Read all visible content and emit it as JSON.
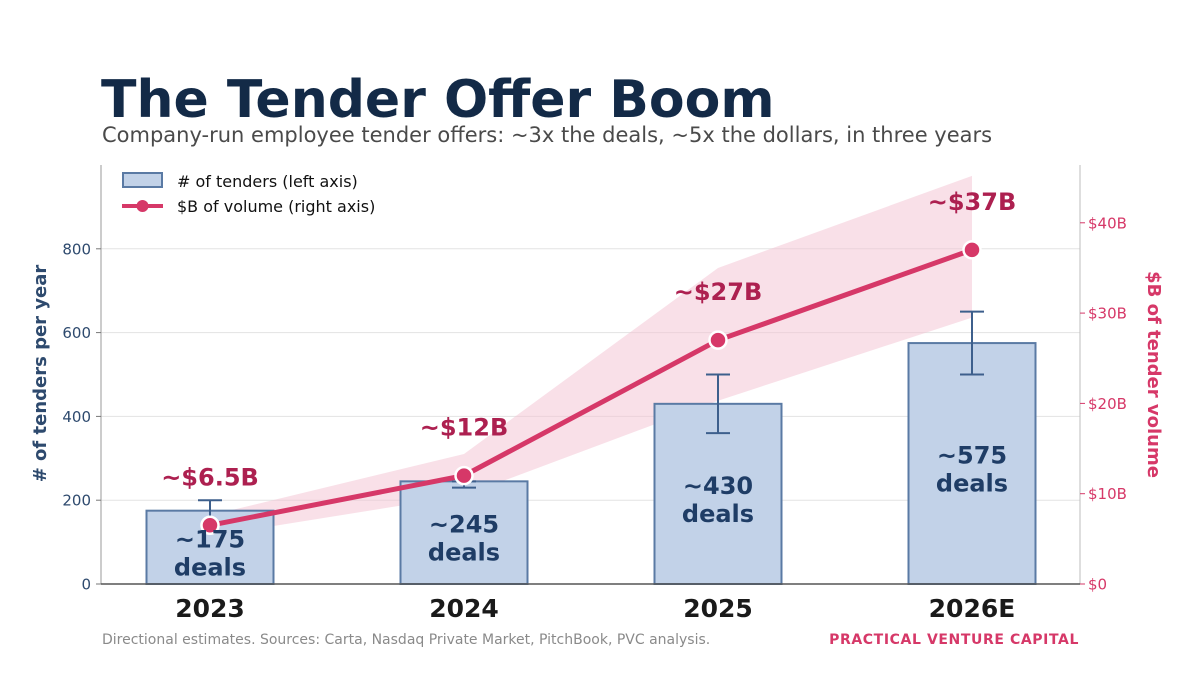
{
  "header": {
    "title": "The Tender Offer Boom",
    "subtitle": "Company-run employee tender offers: ~3x the deals, ~5x the dollars, in three years"
  },
  "footer": {
    "source_note": "Directional estimates. Sources: Carta, Nasdaq Private Market, PitchBook, PVC analysis.",
    "brand": "PRACTICAL VENTURE CAPITAL"
  },
  "colors": {
    "bar_fill": "#c2d2e8",
    "bar_stroke": "#5a7aa4",
    "bar_text": "#1f3d66",
    "line": "#d63868",
    "band": "#f3c1d1",
    "line_label": "#ad2050",
    "left_axis": "#2e4a6e",
    "right_axis": "#d63868",
    "title": "#132a47",
    "grid": "#e3e3e3"
  },
  "chart_data": {
    "type": "bar",
    "categories": [
      "2023",
      "2024",
      "2025",
      "2026E"
    ],
    "legend": {
      "placement": "top-left",
      "entries": [
        "# of tenders (left axis)",
        "$B of volume (right axis)"
      ]
    },
    "ylabel": "# of tenders per year",
    "ylabel_right": "$B of tender volume",
    "ylim": [
      0,
      1000
    ],
    "yticks": [
      0,
      200,
      400,
      600,
      800
    ],
    "ylim_right": [
      0,
      46.4
    ],
    "yticks_right": [
      0,
      10,
      20,
      30,
      40
    ],
    "ytick_right_labels": [
      "$0",
      "$10B",
      "$20B",
      "$30B",
      "$40B"
    ],
    "grid": true,
    "series": [
      {
        "name": "# of tenders (left axis)",
        "type": "bar",
        "axis": "left",
        "values": [
          175,
          245,
          430,
          575
        ],
        "error_low": [
          125,
          230,
          360,
          500
        ],
        "error_high": [
          200,
          245,
          500,
          650
        ],
        "labels": [
          "~175\ndeals",
          "~245\ndeals",
          "~430\ndeals",
          "~575\ndeals"
        ]
      },
      {
        "name": "$B of volume (right axis)",
        "type": "line",
        "axis": "right",
        "values": [
          6.5,
          12,
          27,
          37
        ],
        "band_low": [
          5.3,
          9.8,
          20.3,
          29.5
        ],
        "band_high": [
          7.6,
          14.4,
          35,
          45.2
        ],
        "labels": [
          "~$6.5B",
          "~$12B",
          "~$27B",
          "~$37B"
        ]
      }
    ]
  }
}
